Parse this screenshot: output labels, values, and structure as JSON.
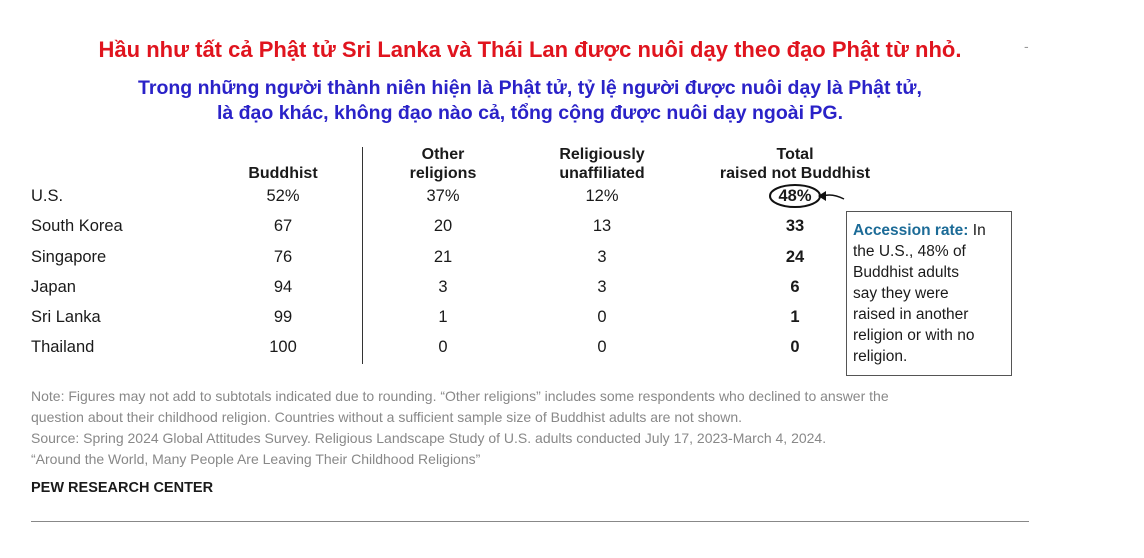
{
  "header": {
    "title": "Hầu như tất cả Phật tử Sri Lanka và Thái Lan được nuôi dạy theo đạo Phật từ nhỏ.",
    "title_mark": "-",
    "subtitle_line1": "Trong những người thành niên hiện là Phật tử, tỷ lệ người được nuôi dạy là Phật tử,",
    "subtitle_line2": "là đạo khác, không đạo nào cả, tổng cộng được nuôi dạy ngoài PG."
  },
  "chart_data": {
    "type": "table",
    "columns": [
      {
        "key": "buddhist",
        "label": "Buddhist"
      },
      {
        "key": "other",
        "label": "Other religions",
        "label_line1": "Other",
        "label_line2": "religions"
      },
      {
        "key": "unaffiliated",
        "label": "Religiously unaffiliated",
        "label_line1": "Religiously",
        "label_line2": "unaffiliated"
      },
      {
        "key": "total",
        "label": "Total raised not Buddhist",
        "label_line1": "Total",
        "label_line2": "raised not Buddhist"
      }
    ],
    "rows": [
      {
        "country": "U.S.",
        "buddhist": "52%",
        "other": "37%",
        "unaffiliated": "12%",
        "total": "48%"
      },
      {
        "country": "South Korea",
        "buddhist": "67",
        "other": "20",
        "unaffiliated": "13",
        "total": "33"
      },
      {
        "country": "Singapore",
        "buddhist": "76",
        "other": "21",
        "unaffiliated": "3",
        "total": "24"
      },
      {
        "country": "Japan",
        "buddhist": "94",
        "other": "3",
        "unaffiliated": "3",
        "total": "6"
      },
      {
        "country": "Sri Lanka",
        "buddhist": "99",
        "other": "1",
        "unaffiliated": "0",
        "total": "1"
      },
      {
        "country": "Thailand",
        "buddhist": "100",
        "other": "0",
        "unaffiliated": "0",
        "total": "0"
      }
    ],
    "annotation": {
      "heading": "Accession rate:",
      "text_first": "In",
      "lines": [
        "the U.S., 48% of",
        "Buddhist adults",
        "say they were",
        "raised in another",
        "religion or with no",
        "religion."
      ]
    }
  },
  "footer": {
    "note_line1": "Note: Figures may not add to subtotals indicated due to rounding. “Other religions” includes some respondents who declined to answer the",
    "note_line2": "question about their childhood religion. Countries without a sufficient sample size of Buddhist adults are not shown.",
    "source": "Source: Spring 2024 Global Attitudes Survey. Religious Landscape Study of U.S. adults conducted July 17, 2023-March 4, 2024.",
    "report": "“Around the World, Many People Are Leaving Their Childhood Religions”",
    "org": "PEW RESEARCH CENTER"
  },
  "colors": {
    "title": "#e0141e",
    "subtitle": "#2a22c8",
    "callout_heading": "#1c6b97",
    "note": "#888888"
  }
}
